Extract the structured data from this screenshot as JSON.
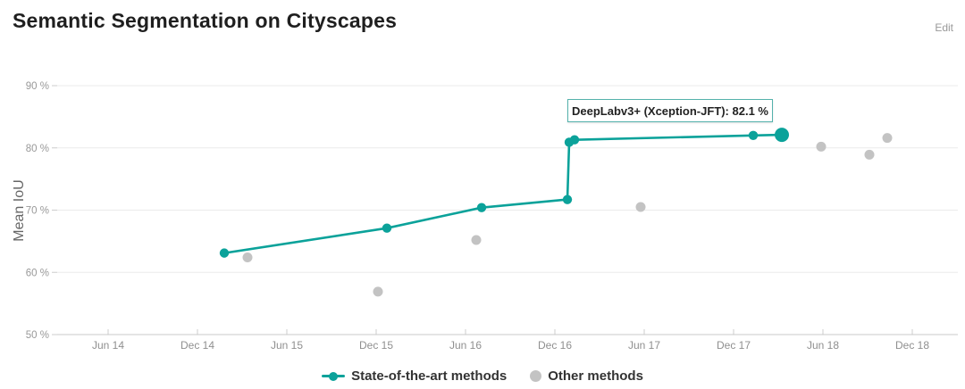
{
  "header": {
    "title": "Semantic Segmentation on Cityscapes",
    "edit_label": "Edit"
  },
  "tooltip": {
    "text": "DeepLabv3+ (Xception-JFT): 82.1 %"
  },
  "legend": {
    "items": [
      {
        "label": "State-of-the-art methods",
        "marker": "line-dot-icon",
        "color": "#0ba29a"
      },
      {
        "label": "Other methods",
        "marker": "dot-icon",
        "color": "#c3c3c3"
      }
    ]
  },
  "chart_data": {
    "type": "line",
    "title": "Semantic Segmentation on Cityscapes",
    "xlabel": "",
    "ylabel": "Mean IoU",
    "ylim": [
      50,
      90
    ],
    "grid": "horizontal",
    "legend_position": "bottom-center",
    "y_ticks": [
      {
        "value": 90,
        "label": "90 %"
      },
      {
        "value": 80,
        "label": "80 %"
      },
      {
        "value": 70,
        "label": "70 %"
      },
      {
        "value": 60,
        "label": "60 %"
      },
      {
        "value": 50,
        "label": "50 %"
      }
    ],
    "x_ticks": [
      {
        "value": 2014.45,
        "label": "Jun 14"
      },
      {
        "value": 2014.95,
        "label": "Dec 14"
      },
      {
        "value": 2015.45,
        "label": "Jun 15"
      },
      {
        "value": 2015.95,
        "label": "Dec 15"
      },
      {
        "value": 2016.45,
        "label": "Jun 16"
      },
      {
        "value": 2016.95,
        "label": "Dec 16"
      },
      {
        "value": 2017.45,
        "label": "Jun 17"
      },
      {
        "value": 2017.95,
        "label": "Dec 17"
      },
      {
        "value": 2018.45,
        "label": "Jun 18"
      },
      {
        "value": 2018.95,
        "label": "Dec 18"
      }
    ],
    "series": [
      {
        "name": "State-of-the-art methods",
        "type": "line+scatter",
        "color": "#0ba29a",
        "points": [
          {
            "date": "Feb 2015",
            "x": 2015.1,
            "mean_iou": 63.1
          },
          {
            "date": "Dec 2015",
            "x": 2016.01,
            "mean_iou": 67.1
          },
          {
            "date": "Jul 2016",
            "x": 2016.54,
            "mean_iou": 70.4
          },
          {
            "date": "Dec 2016",
            "x": 2017.02,
            "mean_iou": 71.7
          },
          {
            "date": "Jan 2017",
            "x": 2017.03,
            "mean_iou": 80.9
          },
          {
            "date": "Jan 2017",
            "x": 2017.06,
            "mean_iou": 81.3
          },
          {
            "date": "Jan 2018",
            "x": 2018.06,
            "mean_iou": 82.0
          },
          {
            "date": "Mar 2018",
            "x": 2018.22,
            "mean_iou": 82.1,
            "method": "DeepLabv3+ (Xception-JFT)",
            "highlighted": true
          }
        ]
      },
      {
        "name": "Other methods",
        "type": "scatter",
        "color": "#c3c3c3",
        "points": [
          {
            "date": "Mar 2015",
            "x": 2015.23,
            "mean_iou": 62.4
          },
          {
            "date": "Dec 2015",
            "x": 2015.96,
            "mean_iou": 56.9
          },
          {
            "date": "Jun 2016",
            "x": 2016.51,
            "mean_iou": 65.2
          },
          {
            "date": "Jun 2017",
            "x": 2017.43,
            "mean_iou": 70.5
          },
          {
            "date": "Jun 2018",
            "x": 2018.44,
            "mean_iou": 80.2
          },
          {
            "date": "Sep 2018",
            "x": 2018.71,
            "mean_iou": 78.9
          },
          {
            "date": "Oct 2018",
            "x": 2018.81,
            "mean_iou": 81.6
          }
        ]
      }
    ],
    "annotation": {
      "text": "DeepLabv3+ (Xception-JFT): 82.1 %",
      "attached_to": "highlighted point of State-of-the-art methods"
    }
  }
}
